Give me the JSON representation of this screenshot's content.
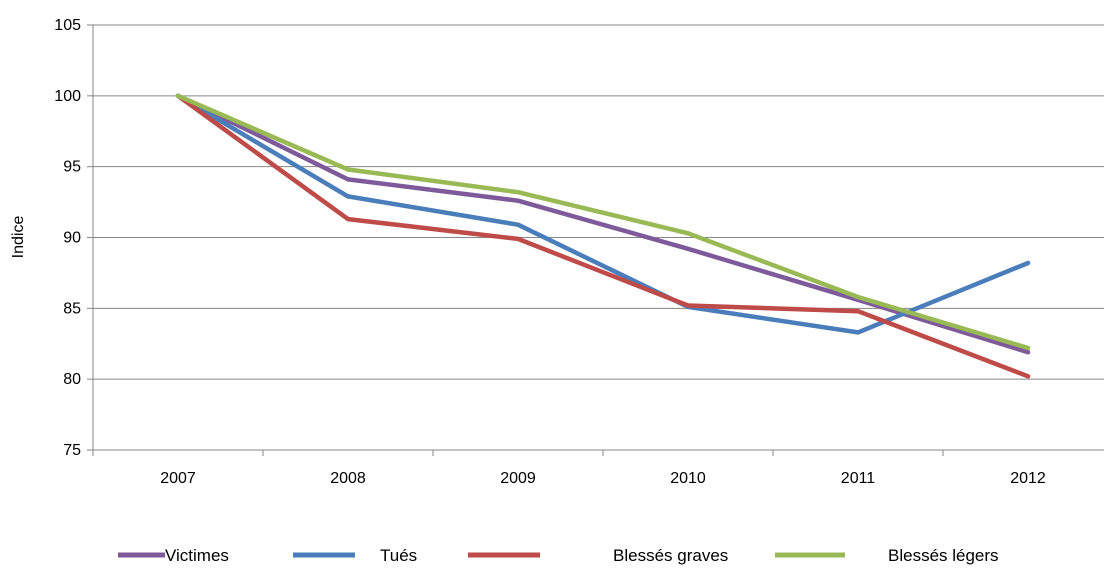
{
  "chart_data": {
    "type": "line",
    "categories": [
      "2007",
      "2008",
      "2009",
      "2010",
      "2011",
      "2012"
    ],
    "ylabel": "Indice",
    "xlabel": "",
    "ylim": [
      75,
      105
    ],
    "yticks": [
      75,
      80,
      85,
      90,
      95,
      100,
      105
    ],
    "grid": "horizontal",
    "legend_position": "bottom",
    "series": [
      {
        "name": "Victimes",
        "color": "#7e5a9b",
        "values": [
          100,
          94.1,
          92.6,
          89.2,
          85.6,
          81.9
        ]
      },
      {
        "name": "Tués",
        "color": "#4a7ebb",
        "values": [
          100,
          92.9,
          90.9,
          85.1,
          83.3,
          88.2
        ]
      },
      {
        "name": "Blessés graves",
        "color": "#be4b48",
        "values": [
          100,
          91.3,
          89.9,
          85.2,
          84.8,
          80.2
        ]
      },
      {
        "name": "Blessés légers",
        "color": "#98b954",
        "values": [
          100,
          94.8,
          93.2,
          90.3,
          85.8,
          82.2
        ]
      }
    ]
  }
}
